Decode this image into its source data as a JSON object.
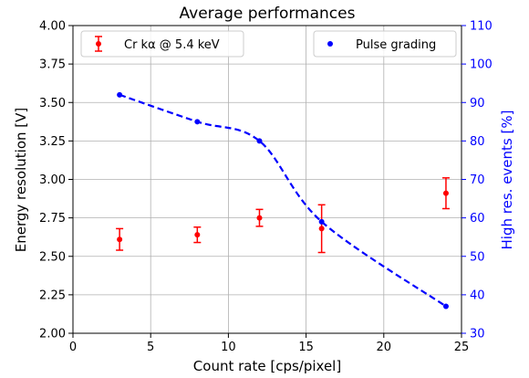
{
  "chart_data": {
    "type": "scatter",
    "title": "Average performances",
    "xlabel": "Count rate [cps/pixel]",
    "ylabel_left": "Energy resolution [V]",
    "ylabel_right": "High res. events [%]",
    "xlim": [
      0,
      25
    ],
    "ylim_left": [
      2.0,
      4.0
    ],
    "ylim_right": [
      30,
      110
    ],
    "xticks": [
      "0",
      "5",
      "10",
      "15",
      "20",
      "25"
    ],
    "yticks_left": [
      "2.00",
      "2.25",
      "2.50",
      "2.75",
      "3.00",
      "3.25",
      "3.50",
      "3.75",
      "4.00"
    ],
    "yticks_right": [
      "30",
      "40",
      "50",
      "60",
      "70",
      "80",
      "90",
      "100",
      "110"
    ],
    "grid": true,
    "colors": {
      "left_axis": "#000000",
      "right_axis": "#0000ff",
      "series_energy": "#ff0000",
      "series_pulse": "#0000ff",
      "grid": "#b0b0b0"
    },
    "series": [
      {
        "name": "Cr kα @ 5.4 keV",
        "axis": "left",
        "marker": "point-with-errorbars",
        "x": [
          3,
          8,
          12,
          16,
          24
        ],
        "y": [
          2.61,
          2.64,
          2.75,
          2.68,
          2.91
        ],
        "yerr": [
          0.07,
          0.05,
          0.055,
          0.155,
          0.1
        ]
      },
      {
        "name": "Pulse grading",
        "axis": "right",
        "marker": "point",
        "fit": "dashed",
        "x": [
          3,
          8,
          12,
          16,
          24
        ],
        "y": [
          92,
          85,
          80,
          59,
          37
        ]
      }
    ],
    "legend": [
      {
        "label": "Cr kα @ 5.4 keV",
        "placement": "upper-left"
      },
      {
        "label": "Pulse grading",
        "placement": "upper-right"
      }
    ]
  }
}
